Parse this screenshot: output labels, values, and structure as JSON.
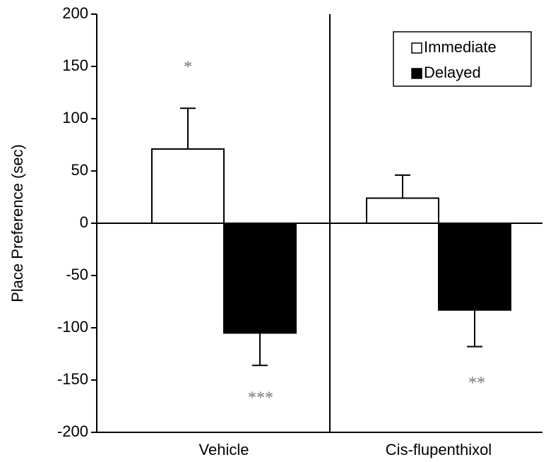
{
  "chart_data": {
    "type": "bar",
    "ylabel": "Place Preference (sec)",
    "categories": [
      "Vehicle",
      "Cis-flupenthixol"
    ],
    "series": [
      {
        "name": "Immediate",
        "color": "#ffffff",
        "values": [
          71,
          24
        ],
        "errors": [
          39,
          22
        ]
      },
      {
        "name": "Delayed",
        "color": "#000000",
        "values": [
          -105,
          -83
        ],
        "errors": [
          31,
          35
        ]
      }
    ],
    "annotations": [
      "*",
      "***",
      "**"
    ],
    "ylim": [
      -200,
      200
    ],
    "yticks": [
      -200,
      -150,
      -100,
      -50,
      0,
      50,
      100,
      150,
      200
    ],
    "legend": "upper right"
  }
}
